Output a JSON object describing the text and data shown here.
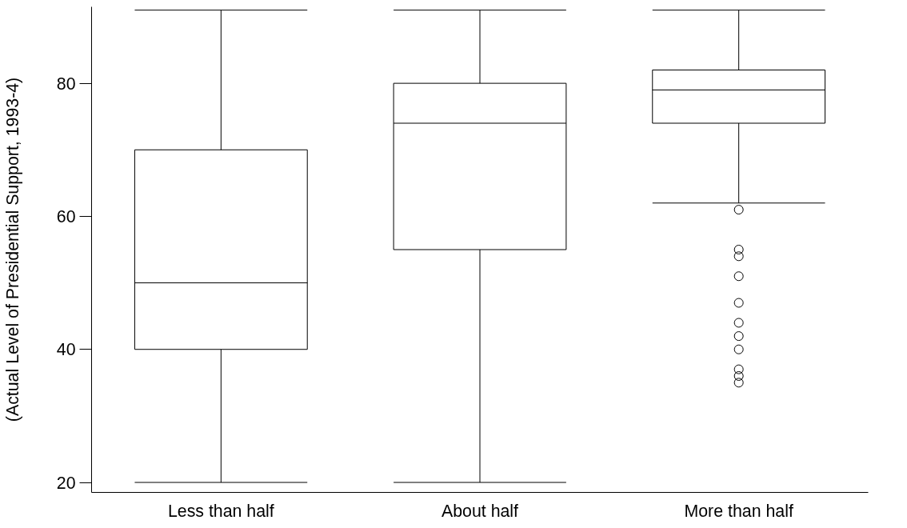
{
  "chart_data": {
    "type": "box",
    "ylabel": "(Actual Level of Presidential Support, 1993-4)",
    "categories": [
      "Less than half",
      "About half",
      "More than half"
    ],
    "boxes": [
      {
        "low": 20,
        "q1": 40,
        "median": 50,
        "q3": 70,
        "high": 91
      },
      {
        "low": 20,
        "q1": 55,
        "median": 74,
        "q3": 80,
        "high": 91
      },
      {
        "low": 62,
        "q1": 74,
        "median": 79,
        "q3": 82,
        "high": 91,
        "outliers": [
          61,
          55,
          54,
          51,
          47,
          44,
          42,
          40,
          37,
          36,
          35
        ]
      }
    ],
    "ylim": [
      18.5,
      91.5
    ],
    "yticks": [
      20,
      40,
      60,
      80
    ]
  }
}
